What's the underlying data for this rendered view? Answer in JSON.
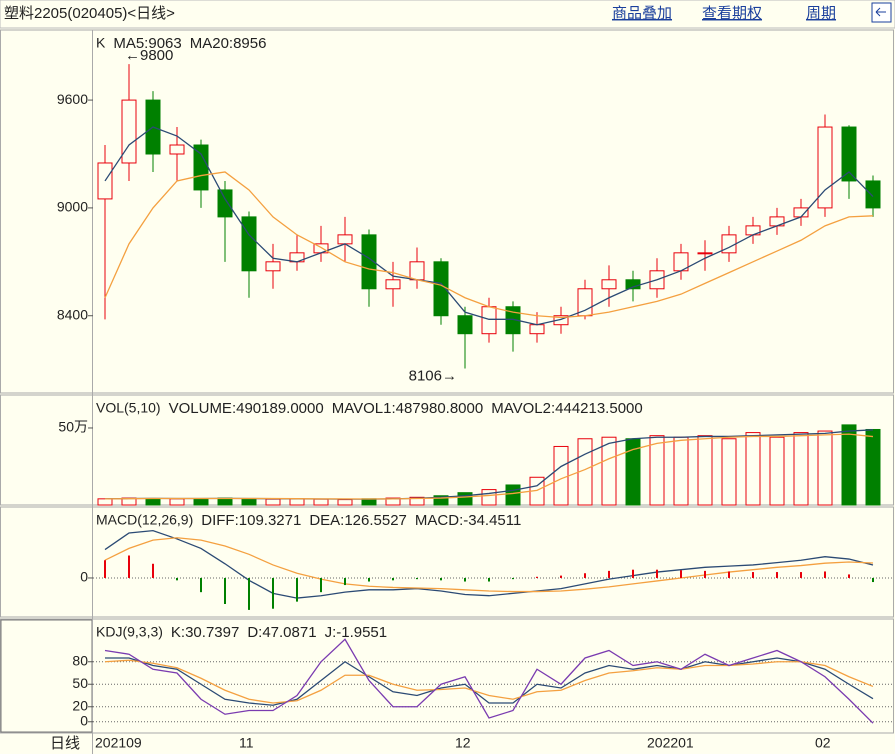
{
  "header": {
    "title": "塑料2205(020405)<日线>",
    "links": [
      "商品叠加",
      "查看期权",
      "周期"
    ]
  },
  "footer": {
    "period": "日线"
  },
  "chart_data": [
    {
      "type": "candlestick",
      "label": "K",
      "up_color": "#e8000b",
      "down_color": "#008000",
      "categories": [
        "202109",
        null,
        null,
        null,
        null,
        null,
        "11",
        null,
        null,
        null,
        null,
        null,
        null,
        null,
        null,
        "12",
        null,
        null,
        null,
        null,
        null,
        null,
        null,
        "202201",
        null,
        null,
        null,
        null,
        null,
        null,
        "02",
        null,
        null
      ],
      "open": [
        9050,
        9250,
        9600,
        9300,
        9350,
        9100,
        8950,
        8650,
        8700,
        8750,
        8800,
        8850,
        8550,
        8600,
        8700,
        8400,
        8300,
        8450,
        8300,
        8350,
        8400,
        8550,
        8600,
        8550,
        8650,
        8750,
        8750,
        8850,
        8900,
        8950,
        9000,
        9450,
        9150
      ],
      "high": [
        9350,
        9800,
        9650,
        9450,
        9380,
        9150,
        8980,
        8800,
        8850,
        8900,
        8950,
        8880,
        8700,
        8780,
        8720,
        8450,
        8500,
        8480,
        8420,
        8450,
        8600,
        8680,
        8650,
        8720,
        8800,
        8820,
        8900,
        8950,
        9000,
        9050,
        9520,
        9460,
        9180
      ],
      "low": [
        8380,
        9150,
        9200,
        9150,
        9000,
        8700,
        8500,
        8550,
        8650,
        8700,
        8700,
        8450,
        8450,
        8550,
        8350,
        8106,
        8250,
        8200,
        8250,
        8300,
        8380,
        8450,
        8480,
        8500,
        8600,
        8650,
        8700,
        8800,
        8850,
        8900,
        8950,
        9050,
        8950
      ],
      "close": [
        9250,
        9600,
        9300,
        9350,
        9100,
        8950,
        8650,
        8700,
        8750,
        8800,
        8850,
        8550,
        8600,
        8700,
        8400,
        8300,
        8450,
        8300,
        8350,
        8400,
        8550,
        8600,
        8550,
        8650,
        8750,
        8750,
        8850,
        8900,
        8950,
        9000,
        9450,
        9150,
        9000
      ],
      "series": [
        {
          "name": "MA5:9063",
          "color": "#2b4a74",
          "values": [
            9150,
            9350,
            9450,
            9400,
            9300,
            9050,
            8850,
            8720,
            8700,
            8750,
            8800,
            8720,
            8620,
            8600,
            8580,
            8420,
            8380,
            8380,
            8350,
            8380,
            8430,
            8500,
            8560,
            8600,
            8650,
            8720,
            8780,
            8850,
            8900,
            8950,
            9100,
            9200,
            9063
          ]
        },
        {
          "name": "MA20:8956",
          "color": "#f4a040",
          "values": [
            8500,
            8800,
            9000,
            9150,
            9180,
            9200,
            9100,
            8950,
            8850,
            8780,
            8700,
            8660,
            8640,
            8600,
            8570,
            8500,
            8450,
            8420,
            8400,
            8390,
            8400,
            8420,
            8450,
            8480,
            8520,
            8580,
            8640,
            8700,
            8760,
            8820,
            8900,
            8950,
            8956
          ]
        }
      ],
      "annotations": [
        {
          "text": "←9800",
          "x": 1,
          "y": 9800
        },
        {
          "text": "8106→",
          "x": 15,
          "y": 8106
        }
      ],
      "ylim": [
        7970,
        9990
      ],
      "yticks": [
        8400,
        9000,
        9600
      ],
      "grid": false
    },
    {
      "type": "bar",
      "label": "VOL(5,10)",
      "up_color": "#e8000b",
      "down_color": "#008000",
      "series": [
        {
          "name": "VOLUME:490189.0000",
          "color": "#1c3d6e",
          "type": "bar",
          "values": [
            40000,
            45000,
            42000,
            40000,
            42000,
            45000,
            40000,
            38000,
            40000,
            38000,
            35000,
            40000,
            45000,
            50000,
            60000,
            80000,
            100000,
            130000,
            180000,
            380000,
            430000,
            440000,
            430000,
            450000,
            440000,
            450000,
            430000,
            470000,
            440000,
            470000,
            480000,
            520000,
            490189
          ]
        },
        {
          "name": "MAVOL1:487980.8000",
          "color": "#2b4a74",
          "values": [
            40000,
            42000,
            43000,
            42000,
            42000,
            43000,
            42000,
            41000,
            40000,
            39000,
            38000,
            38000,
            40000,
            44000,
            50000,
            60000,
            75000,
            95000,
            125000,
            250000,
            330000,
            400000,
            430000,
            440000,
            440000,
            445000,
            445000,
            450000,
            455000,
            460000,
            465000,
            480000,
            487981
          ]
        },
        {
          "name": "MAVOL2:444213.5000",
          "color": "#f4a040",
          "values": [
            40000,
            41000,
            42000,
            42000,
            42000,
            42000,
            42000,
            42000,
            41000,
            40000,
            40000,
            39000,
            40000,
            42000,
            45000,
            52000,
            62000,
            75000,
            95000,
            170000,
            230000,
            300000,
            360000,
            400000,
            420000,
            430000,
            440000,
            445000,
            445000,
            450000,
            455000,
            460000,
            444214
          ]
        }
      ],
      "ylim": [
        0,
        714000
      ],
      "yticks": [
        {
          "value": 500000,
          "label": "50万"
        }
      ],
      "grid": false
    },
    {
      "type": "macd",
      "label": "MACD(12,26,9)",
      "up_color": "#e8000b",
      "down_color": "#008000",
      "series": [
        {
          "name": "DIFF:109.3271",
          "color": "#2b4a74",
          "values": [
            240,
            380,
            400,
            330,
            250,
            120,
            -20,
            -130,
            -170,
            -150,
            -120,
            -100,
            -100,
            -90,
            -110,
            -140,
            -150,
            -130,
            -110,
            -90,
            -50,
            -10,
            20,
            50,
            70,
            90,
            100,
            110,
            130,
            150,
            180,
            160,
            109.3271
          ]
        },
        {
          "name": "DEA:126.5527",
          "color": "#f4a040",
          "values": [
            150,
            250,
            320,
            340,
            320,
            270,
            200,
            110,
            40,
            -10,
            -50,
            -70,
            -80,
            -85,
            -90,
            -100,
            -110,
            -115,
            -115,
            -110,
            -95,
            -75,
            -50,
            -25,
            0,
            25,
            50,
            70,
            90,
            105,
            125,
            135,
            126.5527
          ]
        },
        {
          "name": "MACD:-34.4511",
          "color": "#666666",
          "type": "bar",
          "values": [
            150,
            190,
            120,
            -20,
            -120,
            -220,
            -270,
            -260,
            -200,
            -120,
            -60,
            -30,
            -20,
            -10,
            -20,
            -30,
            -30,
            -10,
            10,
            20,
            40,
            60,
            70,
            70,
            65,
            60,
            55,
            50,
            50,
            50,
            55,
            30,
            -34.4511
          ]
        }
      ],
      "ylim": [
        -330,
        600
      ],
      "yticks": [
        0
      ],
      "grid": true
    },
    {
      "type": "line",
      "label": "KDJ(9,3,3)",
      "series": [
        {
          "name": "K:30.7397",
          "color": "#2b4a74",
          "values": [
            85,
            85,
            75,
            70,
            50,
            30,
            25,
            22,
            30,
            55,
            80,
            60,
            40,
            35,
            45,
            50,
            25,
            25,
            50,
            45,
            65,
            75,
            70,
            75,
            70,
            80,
            75,
            80,
            85,
            80,
            70,
            50,
            30.7397
          ]
        },
        {
          "name": "D:47.0871",
          "color": "#f4a040",
          "values": [
            80,
            82,
            78,
            72,
            58,
            42,
            30,
            25,
            28,
            42,
            62,
            62,
            50,
            42,
            43,
            45,
            35,
            30,
            40,
            42,
            55,
            65,
            68,
            72,
            70,
            75,
            75,
            77,
            80,
            80,
            75,
            60,
            47.0871
          ]
        },
        {
          "name": "J:-1.9551",
          "color": "#7a3bb0",
          "values": [
            95,
            90,
            70,
            65,
            30,
            10,
            15,
            15,
            35,
            80,
            110,
            55,
            20,
            20,
            50,
            60,
            5,
            15,
            70,
            50,
            85,
            95,
            75,
            80,
            70,
            90,
            75,
            85,
            95,
            80,
            60,
            30,
            -1.9551
          ]
        }
      ],
      "ylim": [
        -15,
        137
      ],
      "yticks": [
        0,
        20,
        50,
        80
      ],
      "grid": true
    }
  ]
}
